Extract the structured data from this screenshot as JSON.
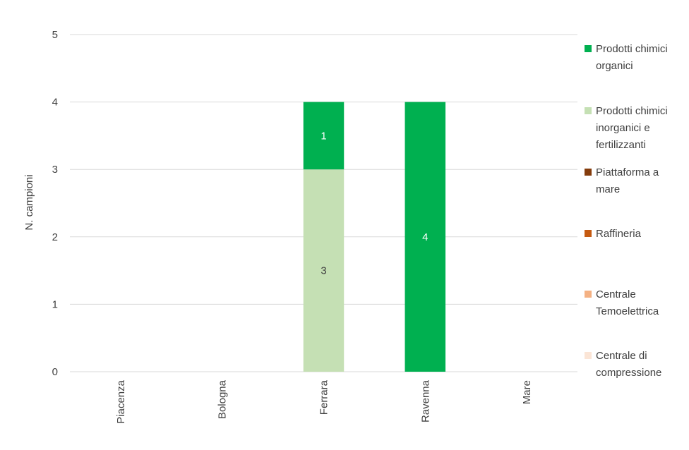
{
  "chart_data": {
    "type": "bar",
    "stacked": true,
    "ylabel": "N. campioni",
    "xlabel": "",
    "ylim": [
      0,
      5
    ],
    "yticks": [
      0,
      1,
      2,
      3,
      4,
      5
    ],
    "grid": true,
    "legend_position": "right",
    "categories": [
      "Piacenza",
      "Bologna",
      "Ferrara",
      "Ravenna",
      "Mare"
    ],
    "series": [
      {
        "name": "Centrale di compressione",
        "color": "#fbe5d6",
        "values": [
          0,
          0,
          0,
          0,
          0
        ]
      },
      {
        "name": "Centrale Temoelettrica",
        "color": "#f4b183",
        "values": [
          0,
          0,
          0,
          0,
          0
        ]
      },
      {
        "name": "Raffineria",
        "color": "#c55a11",
        "values": [
          0,
          0,
          0,
          0,
          0
        ]
      },
      {
        "name": "Piattaforma a mare",
        "color": "#843c0c",
        "values": [
          0,
          0,
          0,
          0,
          0
        ]
      },
      {
        "name": "Prodotti chimici inorganici e fertilizzanti",
        "color": "#c5e0b4",
        "label_color": "#404040",
        "values": [
          0,
          0,
          3,
          0,
          0
        ]
      },
      {
        "name": "Prodotti chimici organici",
        "color": "#00b050",
        "label_color": "#ffffff",
        "values": [
          0,
          0,
          1,
          4,
          0
        ]
      }
    ],
    "legend": [
      {
        "lines": [
          "Prodotti chimici",
          "organici"
        ],
        "color": "#00b050"
      },
      {
        "lines": [
          "Prodotti chimici",
          "inorganici e",
          "fertilizzanti"
        ],
        "color": "#c5e0b4"
      },
      {
        "lines": [
          "Piattaforma a",
          "mare"
        ],
        "color": "#843c0c"
      },
      {
        "lines": [
          "Raffineria"
        ],
        "color": "#c55a11"
      },
      {
        "lines": [
          "Centrale",
          "Temoelettrica"
        ],
        "color": "#f4b183"
      },
      {
        "lines": [
          "Centrale di",
          "compressione"
        ],
        "color": "#fbe5d6"
      }
    ]
  }
}
